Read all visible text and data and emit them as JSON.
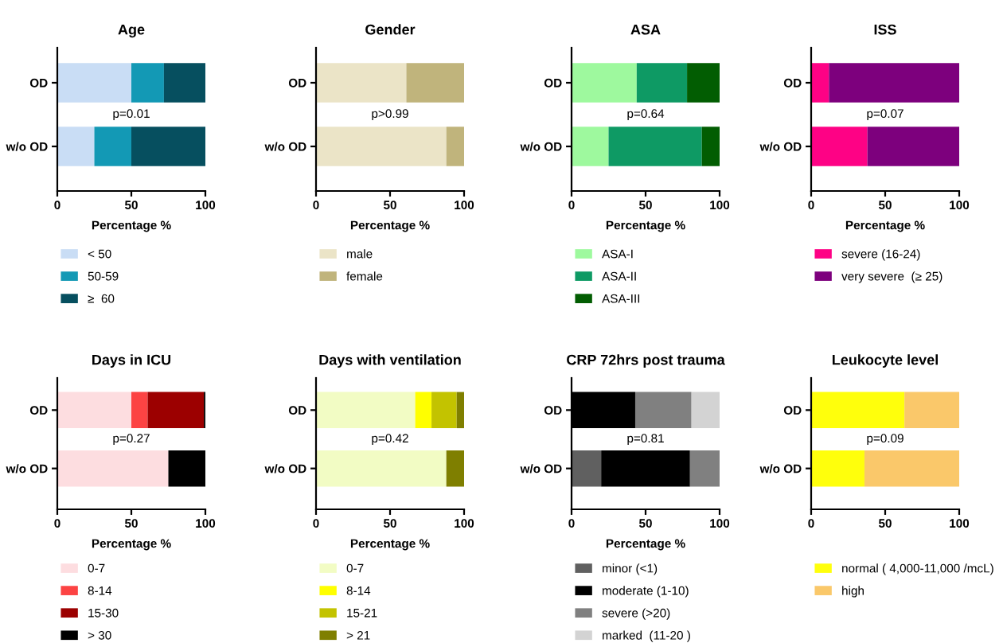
{
  "chart_data": [
    {
      "type": "bar",
      "orientation": "horizontal",
      "stacked": true,
      "title": "Age",
      "xlabel": "Percentage %",
      "categories": [
        "OD",
        "w/o OD"
      ],
      "xlim": [
        0,
        100
      ],
      "xticks": [
        0,
        50,
        100
      ],
      "legend": "bottom",
      "grid": false,
      "annotations": [
        "p=0.01"
      ],
      "series": [
        {
          "name": "< 50",
          "color": "#c9ddf5",
          "values": [
            50,
            25
          ]
        },
        {
          "name": "50-59",
          "color": "#1399b5",
          "values": [
            22,
            25
          ]
        },
        {
          "name": "≥  60",
          "color": "#064f5f",
          "values": [
            28,
            50
          ]
        }
      ]
    },
    {
      "type": "bar",
      "orientation": "horizontal",
      "stacked": true,
      "title": "Gender",
      "xlabel": "Percentage %",
      "categories": [
        "OD",
        "w/o OD"
      ],
      "xlim": [
        0,
        100
      ],
      "xticks": [
        0,
        50,
        100
      ],
      "legend": "bottom",
      "grid": false,
      "annotations": [
        "p>0.99"
      ],
      "series": [
        {
          "name": "male",
          "color": "#ebe4c7",
          "values": [
            61,
            88
          ]
        },
        {
          "name": "female",
          "color": "#c0b47c",
          "values": [
            39,
            12
          ]
        }
      ]
    },
    {
      "type": "bar",
      "orientation": "horizontal",
      "stacked": true,
      "title": "ASA",
      "xlabel": "Percentage %",
      "categories": [
        "OD",
        "w/o OD"
      ],
      "xlim": [
        0,
        100
      ],
      "xticks": [
        0,
        50,
        100
      ],
      "legend": "bottom",
      "grid": false,
      "annotations": [
        "p=0.64"
      ],
      "series": [
        {
          "name": "ASA-I",
          "color": "#9ef99e",
          "values": [
            44,
            25
          ]
        },
        {
          "name": "ASA-II",
          "color": "#0e9a64",
          "values": [
            34,
            63
          ]
        },
        {
          "name": "ASA-III",
          "color": "#025d02",
          "values": [
            22,
            12
          ]
        }
      ]
    },
    {
      "type": "bar",
      "orientation": "horizontal",
      "stacked": true,
      "title": "ISS",
      "xlabel": "Percentage %",
      "categories": [
        "OD",
        "w/o OD"
      ],
      "xlim": [
        0,
        100
      ],
      "xticks": [
        0,
        50,
        100
      ],
      "legend": "bottom",
      "grid": false,
      "annotations": [
        "p=0.07"
      ],
      "series": [
        {
          "name": "severe (16-24)",
          "color": "#fe0285",
          "values": [
            12,
            38
          ]
        },
        {
          "name": "very severe  (≥ 25)",
          "color": "#7d007d",
          "values": [
            88,
            62
          ]
        }
      ]
    },
    {
      "type": "bar",
      "orientation": "horizontal",
      "stacked": true,
      "title": "Days in ICU",
      "xlabel": "Percentage %",
      "categories": [
        "OD",
        "w/o OD"
      ],
      "xlim": [
        0,
        100
      ],
      "xticks": [
        0,
        50,
        100
      ],
      "legend": "bottom",
      "grid": false,
      "annotations": [
        "p=0.27"
      ],
      "series": [
        {
          "name": "0-7",
          "color": "#fddde0",
          "values": [
            50,
            75
          ]
        },
        {
          "name": "8-14",
          "color": "#fc4343",
          "values": [
            11,
            0
          ]
        },
        {
          "name": "15-30",
          "color": "#9c0000",
          "values": [
            38,
            0
          ]
        },
        {
          "name": "> 30",
          "color": "#000000",
          "values": [
            1,
            25
          ]
        }
      ]
    },
    {
      "type": "bar",
      "orientation": "horizontal",
      "stacked": true,
      "title": "Days with ventilation",
      "xlabel": "Percentage %",
      "categories": [
        "OD",
        "w/o OD"
      ],
      "xlim": [
        0,
        100
      ],
      "xticks": [
        0,
        50,
        100
      ],
      "legend": "bottom",
      "grid": false,
      "annotations": [
        "p=0.42"
      ],
      "series": [
        {
          "name": "0-7",
          "color": "#f2fcc4",
          "values": [
            67,
            88
          ]
        },
        {
          "name": "8-14",
          "color": "#ffff00",
          "values": [
            11,
            0
          ]
        },
        {
          "name": "15-21",
          "color": "#c3c300",
          "values": [
            17,
            0
          ]
        },
        {
          "name": "> 21",
          "color": "#7f7f00",
          "values": [
            5,
            12
          ]
        }
      ]
    },
    {
      "type": "bar",
      "orientation": "horizontal",
      "stacked": true,
      "title": "CRP 72hrs post trauma",
      "xlabel": "Percentage %",
      "categories": [
        "OD",
        "w/o OD"
      ],
      "xlim": [
        0,
        100
      ],
      "xticks": [
        0,
        50,
        100
      ],
      "legend": "bottom",
      "grid": false,
      "annotations": [
        "p=0.81"
      ],
      "series": [
        {
          "name": "minor (<1)",
          "color": "#606060",
          "values": [
            0,
            20
          ]
        },
        {
          "name": "moderate (1-10)",
          "color": "#000000",
          "values": [
            43,
            60
          ]
        },
        {
          "name": "severe (>20)",
          "color": "#808080",
          "values": [
            38,
            20
          ]
        },
        {
          "name": "marked  (11-20 )",
          "color": "#d3d3d3",
          "values": [
            19,
            0
          ]
        }
      ]
    },
    {
      "type": "bar",
      "orientation": "horizontal",
      "stacked": true,
      "title": "Leukocyte level",
      "categories": [
        "OD",
        "w/o OD"
      ],
      "xlim": [
        0,
        100
      ],
      "xticks": [
        0,
        50,
        100
      ],
      "legend": "bottom",
      "grid": false,
      "annotations": [
        "p=0.09"
      ],
      "series": [
        {
          "name": "normal ( 4,000-11,000 /mcL)",
          "color": "#ffff0c",
          "values": [
            63,
            36
          ]
        },
        {
          "name": "high",
          "color": "#fac86a",
          "values": [
            37,
            64
          ]
        }
      ]
    }
  ]
}
